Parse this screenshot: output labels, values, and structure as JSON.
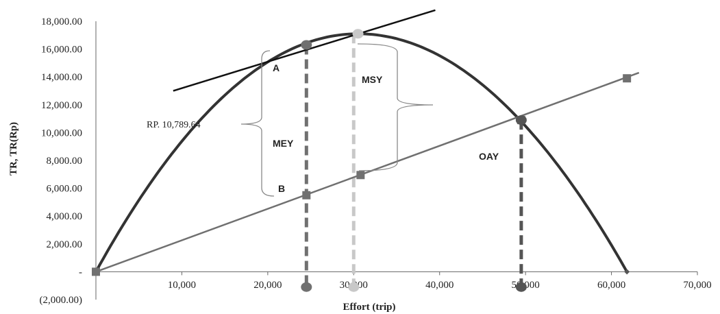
{
  "chart_data": {
    "type": "line",
    "xlabel": "Effort (trip)",
    "ylabel": "TR, TR(Rp)",
    "xlim": [
      0,
      70000
    ],
    "ylim": [
      -2000,
      18000
    ],
    "x_ticks": [
      10000,
      20000,
      30000,
      40000,
      50000,
      60000,
      70000
    ],
    "x_tick_labels": [
      "10,000",
      "20,000",
      "30,000",
      "40,000",
      "50,000",
      "60,000",
      "70,000"
    ],
    "y_ticks": [
      18000,
      16000,
      14000,
      12000,
      10000,
      8000,
      6000,
      4000,
      2000,
      0,
      -2000
    ],
    "y_tick_labels": [
      "18,000.00",
      "16,000.00",
      "14,000.00",
      "12,000.00",
      "10,000.00",
      "8,000.00",
      "6,000.00",
      "4,000.00",
      "2,000.00",
      "-",
      "(2,000.00)"
    ],
    "series": [
      {
        "kind": "curve",
        "color": "#333333",
        "points": [
          [
            0,
            0
          ],
          [
            24500,
            16300
          ],
          [
            30500,
            17100
          ],
          [
            49500,
            10900
          ],
          [
            61800,
            0
          ]
        ],
        "vertex": [
          30500,
          17100
        ],
        "root": 61800
      },
      {
        "kind": "line",
        "color": "#707070",
        "x": [
          0,
          24500,
          30800,
          49500,
          61800
        ],
        "y": [
          0,
          5500,
          6950,
          10900,
          13900
        ],
        "end": [
          63200,
          14300
        ]
      },
      {
        "kind": "tangent",
        "color": "#111111",
        "from": [
          9000,
          13000
        ],
        "to": [
          39500,
          18800
        ]
      }
    ],
    "markers": {
      "curve_points": [
        {
          "x": 24500,
          "y": 16300,
          "color": "#707070"
        },
        {
          "x": 30500,
          "y": 17100,
          "color": "#c8c8c8"
        },
        {
          "x": 49500,
          "y": 10900,
          "color": "#555555"
        }
      ],
      "line_points": [
        {
          "x": 0,
          "y": 0
        },
        {
          "x": 24500,
          "y": 5500
        },
        {
          "x": 30800,
          "y": 6950
        },
        {
          "x": 49500,
          "y": 10900
        },
        {
          "x": 61800,
          "y": 13900
        }
      ],
      "x_axis_points": [
        {
          "x": 24500,
          "y": -1000,
          "color": "#707070"
        },
        {
          "x": 30000,
          "y": -1000,
          "color": "#c8c8c8"
        },
        {
          "x": 49500,
          "y": -1000,
          "color": "#555555"
        }
      ]
    },
    "verticals": [
      {
        "x": 24500,
        "y_top": 16300,
        "color": "#707070"
      },
      {
        "x": 30000,
        "y_top": 17100,
        "color": "#c8c8c8"
      },
      {
        "x": 49500,
        "y_top": 10900,
        "color": "#555555"
      }
    ],
    "annotations": {
      "A": "A",
      "B": "B",
      "MEY": "MEY",
      "MSY": "MSY",
      "OAY": "OAY",
      "rp": "RP. 10,789.64"
    }
  }
}
